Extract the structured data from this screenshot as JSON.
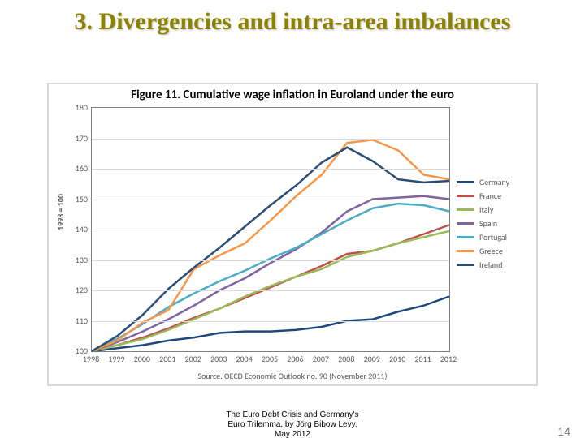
{
  "slide": {
    "title": "3. Divergencies and intra-area imbalances",
    "footer_line1": "The Euro Debt Crisis and Germany's",
    "footer_line2": "Euro Trilemma, by Jörg Bibow Levy,",
    "footer_line3": "May 2012",
    "page_number": "14"
  },
  "chart": {
    "type": "line",
    "title": "Figure 11. Cumulative wage inflation in Euroland under the euro",
    "title_fontsize": 15,
    "y_axis_label": "1998 = 100",
    "source": "Source. OECD Economic Outlook no. 90 (November 2011)",
    "background_color": "#ffffff",
    "border_color": "#808080",
    "grid_color": "#d9d9d9",
    "text_color": "#595959",
    "label_fontsize": 10,
    "line_width": 2.5,
    "ylim": [
      100,
      180
    ],
    "ytick_step": 10,
    "yticks": [
      100,
      110,
      120,
      130,
      140,
      150,
      160,
      170,
      180
    ],
    "xticks": [
      1998,
      1999,
      2000,
      2001,
      2002,
      2003,
      2004,
      2005,
      2006,
      2007,
      2008,
      2009,
      2010,
      2011,
      2012
    ],
    "series": [
      {
        "name": "Germany",
        "color": "#1f497d",
        "values": [
          100,
          101,
          102,
          103.5,
          104.5,
          106,
          106.5,
          106.5,
          107,
          108,
          110,
          110.5,
          113,
          115,
          118
        ]
      },
      {
        "name": "France",
        "color": "#c0504d",
        "values": [
          100,
          102,
          104.5,
          107.5,
          111,
          114,
          117.5,
          121,
          124.5,
          128,
          132,
          133,
          135.5,
          138.5,
          141.5
        ]
      },
      {
        "name": "Italy",
        "color": "#9bbb59",
        "values": [
          100,
          102,
          104,
          107,
          110.5,
          114,
          118,
          121.5,
          124.5,
          127,
          131,
          133,
          135.5,
          137.5,
          139.5
        ]
      },
      {
        "name": "Spain",
        "color": "#8064a2",
        "values": [
          100,
          103,
          106.5,
          110.5,
          115,
          120,
          124,
          129,
          133.5,
          139,
          146,
          150,
          150.5,
          151,
          150
        ]
      },
      {
        "name": "Portugal",
        "color": "#4bacc6",
        "values": [
          100,
          104,
          109,
          114.5,
          119,
          123,
          126.5,
          130.5,
          134,
          138.5,
          143,
          147,
          148.5,
          148,
          146
        ]
      },
      {
        "name": "Greece",
        "color": "#f79646",
        "values": [
          100,
          103.5,
          109.5,
          113.5,
          127,
          131.5,
          135.5,
          143,
          151,
          158,
          168.5,
          169.5,
          166,
          158,
          156.5
        ]
      },
      {
        "name": "Ireland",
        "color": "#2c4d75",
        "values": [
          100,
          105,
          112,
          120.5,
          127.5,
          134,
          141,
          148,
          154.5,
          162,
          167,
          162.5,
          156.5,
          155.5,
          156
        ]
      }
    ]
  }
}
